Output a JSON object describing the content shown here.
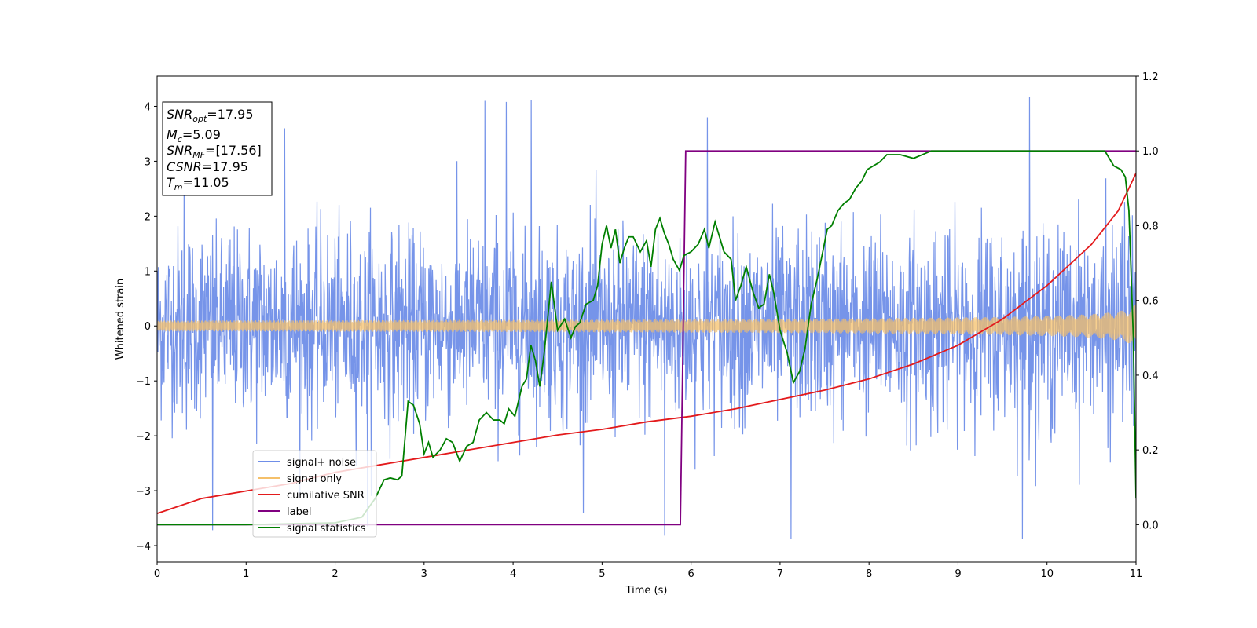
{
  "chart_data": {
    "type": "line",
    "xlabel": "Time (s)",
    "ylabel": "Whitened strain",
    "xlim": [
      0,
      11
    ],
    "ylim": [
      -4.3,
      4.55
    ],
    "y2lim": [
      -0.1,
      1.2
    ],
    "x_ticks": [
      0,
      1,
      2,
      3,
      4,
      5,
      6,
      7,
      8,
      9,
      10,
      11
    ],
    "y_ticks": [
      -4,
      -3,
      -2,
      -1,
      0,
      1,
      2,
      3,
      4
    ],
    "y2_ticks": [
      "0.0",
      "0.2",
      "0.4",
      "0.6",
      "0.8",
      "1.0",
      "1.2"
    ],
    "grid": false,
    "legend_position": "lower-left",
    "info_box": {
      "snr_opt_sym": "SNR",
      "snr_opt_sub": "opt",
      "snr_opt_val": "=17.95",
      "mc_sym": "M",
      "mc_sub": "c",
      "mc_val": "=5.09",
      "snr_mf_sym": "SNR",
      "snr_mf_sub": "MF",
      "snr_mf_val": "=[17.56]",
      "csnr_sym": "CSNR",
      "csnr_val": "=17.95",
      "tm_sym": "T",
      "tm_sub": "m",
      "tm_val": "=11.05"
    },
    "series": [
      {
        "name": "signal+ noise",
        "axis": "left",
        "color": "#6f8ee8",
        "kind": "noise",
        "noise_sigma": 0.85,
        "envelope": {
          "t_merger": 11.05,
          "a0": 0.1,
          "exponent": 0.26
        },
        "peak_samples": [
          [
            0.3,
            2.9
          ],
          [
            0.62,
            -3.72
          ],
          [
            1.43,
            3.6
          ],
          [
            2.36,
            -3.65
          ],
          [
            3.68,
            4.1
          ],
          [
            3.92,
            4.08
          ],
          [
            4.2,
            4.12
          ],
          [
            5.7,
            -3.82
          ],
          [
            6.18,
            3.8
          ],
          [
            7.12,
            -3.88
          ],
          [
            9.8,
            4.17
          ],
          [
            9.72,
            -3.88
          ]
        ]
      },
      {
        "name": "signal only",
        "axis": "left",
        "color": "#f5c06a",
        "kind": "chirp",
        "envelope": {
          "t_merger": 11.05,
          "a0": 0.1,
          "exponent": 0.26
        }
      },
      {
        "name": "cumilative SNR",
        "axis": "right",
        "color": "#e31a1c",
        "x": [
          0,
          0.5,
          1,
          1.5,
          2,
          2.5,
          3,
          3.5,
          4,
          4.5,
          5,
          5.5,
          6,
          6.5,
          7,
          7.5,
          8,
          8.5,
          9,
          9.5,
          10,
          10.5,
          10.8,
          11
        ],
        "y": [
          0.03,
          0.07,
          0.09,
          0.11,
          0.14,
          0.16,
          0.18,
          0.2,
          0.22,
          0.24,
          0.255,
          0.275,
          0.29,
          0.31,
          0.335,
          0.36,
          0.39,
          0.43,
          0.48,
          0.55,
          0.64,
          0.75,
          0.84,
          0.94
        ]
      },
      {
        "name": "label",
        "axis": "right",
        "color": "#800080",
        "x": [
          0,
          5.88,
          5.94,
          11
        ],
        "y": [
          0.0,
          0.0,
          1.0,
          1.0
        ]
      },
      {
        "name": "signal statistics",
        "axis": "right",
        "color": "#007f00",
        "x": [
          0,
          1,
          2,
          2.3,
          2.45,
          2.55,
          2.62,
          2.7,
          2.75,
          2.82,
          2.88,
          2.95,
          3.0,
          3.05,
          3.1,
          3.18,
          3.25,
          3.32,
          3.4,
          3.48,
          3.55,
          3.62,
          3.7,
          3.78,
          3.85,
          3.9,
          3.95,
          4.02,
          4.1,
          4.15,
          4.2,
          4.25,
          4.3,
          4.35,
          4.43,
          4.5,
          4.58,
          4.65,
          4.7,
          4.75,
          4.82,
          4.9,
          4.95,
          5.0,
          5.05,
          5.1,
          5.15,
          5.2,
          5.25,
          5.3,
          5.35,
          5.43,
          5.5,
          5.55,
          5.6,
          5.65,
          5.7,
          5.75,
          5.8,
          5.87,
          5.92,
          6.0,
          6.08,
          6.15,
          6.2,
          6.27,
          6.32,
          6.37,
          6.45,
          6.5,
          6.56,
          6.62,
          6.7,
          6.76,
          6.82,
          6.88,
          6.93,
          7.0,
          7.08,
          7.15,
          7.22,
          7.28,
          7.35,
          7.42,
          7.48,
          7.53,
          7.58,
          7.65,
          7.72,
          7.78,
          7.85,
          7.92,
          7.98,
          8.05,
          8.12,
          8.2,
          8.35,
          8.5,
          8.7,
          9.0,
          9.5,
          10.0,
          10.3,
          10.5,
          10.65,
          10.75,
          10.83,
          10.88,
          10.92,
          10.97,
          11.0
        ],
        "y": [
          0.0,
          0.0,
          0.005,
          0.02,
          0.07,
          0.12,
          0.125,
          0.12,
          0.13,
          0.33,
          0.32,
          0.27,
          0.19,
          0.22,
          0.18,
          0.2,
          0.23,
          0.22,
          0.17,
          0.21,
          0.22,
          0.28,
          0.3,
          0.28,
          0.28,
          0.27,
          0.31,
          0.29,
          0.37,
          0.39,
          0.48,
          0.44,
          0.37,
          0.46,
          0.65,
          0.52,
          0.55,
          0.5,
          0.53,
          0.54,
          0.59,
          0.6,
          0.64,
          0.75,
          0.8,
          0.74,
          0.79,
          0.7,
          0.74,
          0.77,
          0.77,
          0.73,
          0.76,
          0.69,
          0.79,
          0.82,
          0.78,
          0.75,
          0.71,
          0.68,
          0.72,
          0.73,
          0.75,
          0.79,
          0.74,
          0.81,
          0.77,
          0.73,
          0.71,
          0.6,
          0.64,
          0.69,
          0.62,
          0.58,
          0.59,
          0.67,
          0.62,
          0.52,
          0.46,
          0.38,
          0.41,
          0.47,
          0.59,
          0.66,
          0.73,
          0.79,
          0.8,
          0.84,
          0.86,
          0.87,
          0.9,
          0.92,
          0.95,
          0.96,
          0.97,
          0.99,
          0.99,
          0.98,
          1.0,
          1.0,
          1.0,
          1.0,
          1.0,
          1.0,
          1.0,
          0.96,
          0.95,
          0.93,
          0.84,
          0.5,
          0.07
        ]
      }
    ]
  }
}
